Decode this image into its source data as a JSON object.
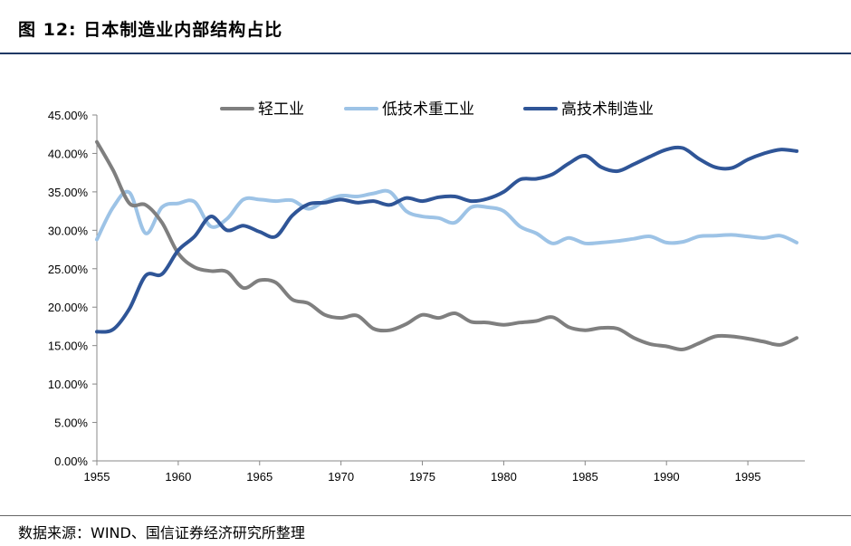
{
  "figure": {
    "title": "图 12:  日本制造业内部结构占比",
    "source": "数据来源：WIND、国信证券经济研究所整理"
  },
  "chart_data": {
    "type": "line",
    "title": "",
    "xlabel": "",
    "ylabel": "",
    "xlim": [
      1955,
      1998.5
    ],
    "ylim": [
      0,
      45
    ],
    "x_ticks": [
      "1955",
      "1960",
      "1965",
      "1970",
      "1975",
      "1980",
      "1985",
      "1990",
      "1995"
    ],
    "y_ticks": [
      "0.00%",
      "5.00%",
      "10.00%",
      "15.00%",
      "20.00%",
      "25.00%",
      "30.00%",
      "35.00%",
      "40.00%",
      "45.00%"
    ],
    "grid": false,
    "legend_position": "top",
    "x": [
      1955,
      1956,
      1957,
      1958,
      1959,
      1960,
      1961,
      1962,
      1963,
      1964,
      1965,
      1966,
      1967,
      1968,
      1969,
      1970,
      1971,
      1972,
      1973,
      1974,
      1975,
      1976,
      1977,
      1978,
      1979,
      1980,
      1981,
      1982,
      1983,
      1984,
      1985,
      1986,
      1987,
      1988,
      1989,
      1990,
      1991,
      1992,
      1993,
      1994,
      1995,
      1996,
      1997,
      1998
    ],
    "series": [
      {
        "name": "轻工业",
        "color": "#7f7f7f",
        "values": [
          41.5,
          37.8,
          33.5,
          33.3,
          31.0,
          27.0,
          25.2,
          24.7,
          24.6,
          22.5,
          23.5,
          23.2,
          21.0,
          20.5,
          19.0,
          18.6,
          18.9,
          17.2,
          17.0,
          17.8,
          19.0,
          18.6,
          19.2,
          18.1,
          18.0,
          17.7,
          18.0,
          18.2,
          18.7,
          17.4,
          17.0,
          17.3,
          17.2,
          16.0,
          15.2,
          14.9,
          14.5,
          15.3,
          16.2,
          16.2,
          15.9,
          15.5,
          15.1,
          16.0
        ]
      },
      {
        "name": "低技术重工业",
        "color": "#9dc3e6",
        "values": [
          28.8,
          33.0,
          34.9,
          29.6,
          33.0,
          33.5,
          33.7,
          30.5,
          31.5,
          34.0,
          34.0,
          33.8,
          33.9,
          32.8,
          33.8,
          34.5,
          34.4,
          34.8,
          35.0,
          32.5,
          31.8,
          31.6,
          31.0,
          33.0,
          33.0,
          32.5,
          30.5,
          29.6,
          28.3,
          29.0,
          28.3,
          28.4,
          28.6,
          28.9,
          29.2,
          28.4,
          28.5,
          29.2,
          29.3,
          29.4,
          29.2,
          29.0,
          29.3,
          28.4
        ]
      },
      {
        "name": "高技术制造业",
        "color": "#2f5597",
        "values": [
          16.8,
          17.1,
          19.8,
          24.1,
          24.3,
          27.4,
          29.2,
          31.8,
          30.0,
          30.6,
          29.8,
          29.2,
          31.9,
          33.4,
          33.6,
          34.0,
          33.6,
          33.8,
          33.3,
          34.2,
          33.8,
          34.3,
          34.4,
          33.8,
          34.1,
          35.0,
          36.6,
          36.7,
          37.3,
          38.7,
          39.7,
          38.2,
          37.7,
          38.6,
          39.6,
          40.5,
          40.7,
          39.3,
          38.2,
          38.1,
          39.2,
          40.0,
          40.5,
          40.3
        ]
      }
    ]
  }
}
